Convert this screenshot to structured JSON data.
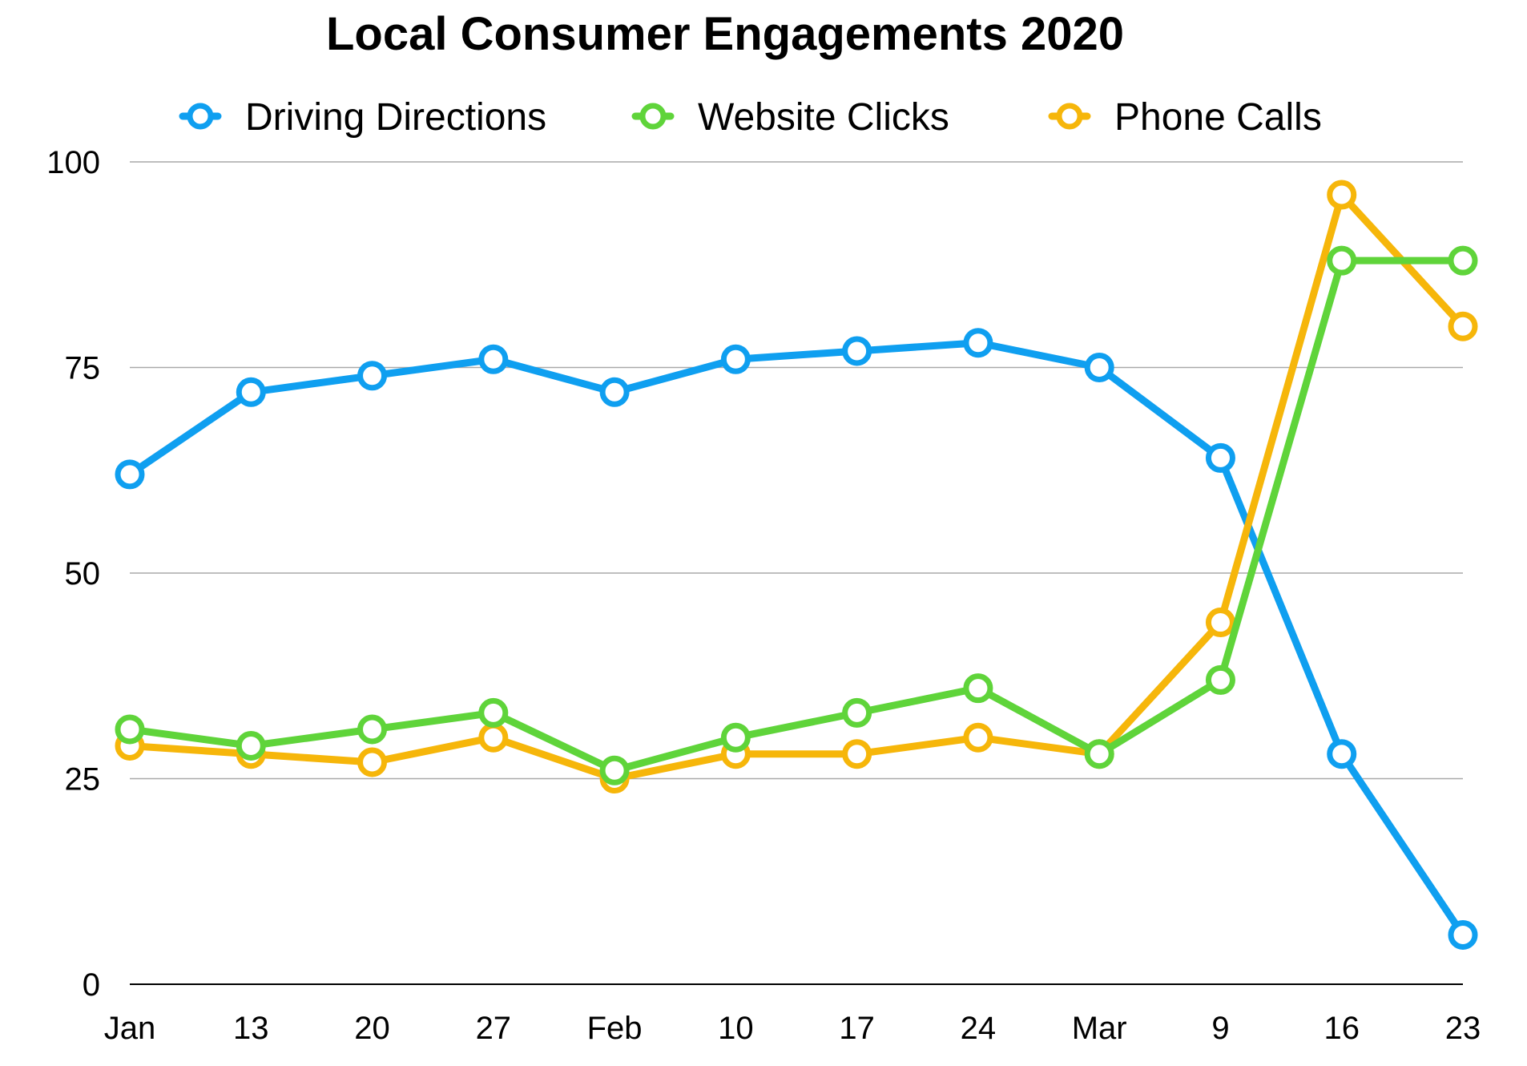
{
  "chart_data": {
    "type": "line",
    "title": "Local Consumer Engagements 2020",
    "xlabel": "",
    "ylabel": "",
    "categories": [
      "Jan",
      "13",
      "20",
      "27",
      "Feb",
      "10",
      "17",
      "24",
      "Mar",
      "9",
      "16",
      "23"
    ],
    "ylim": [
      0,
      100
    ],
    "yticks": [
      "0",
      "25",
      "50",
      "75",
      "100"
    ],
    "grid": true,
    "legend": "top",
    "series": [
      {
        "name": "Driving Directions",
        "color": "#0f9ff0",
        "values": [
          62,
          72,
          74,
          76,
          72,
          76,
          77,
          78,
          75,
          64,
          28,
          6
        ]
      },
      {
        "name": "Website Clicks",
        "color": "#5fd43a",
        "values": [
          31,
          29,
          31,
          33,
          26,
          30,
          33,
          36,
          28,
          37,
          88,
          88
        ]
      },
      {
        "name": "Phone Calls",
        "color": "#f6b60a",
        "values": [
          29,
          28,
          27,
          30,
          25,
          28,
          28,
          30,
          28,
          44,
          96,
          80
        ]
      }
    ]
  }
}
